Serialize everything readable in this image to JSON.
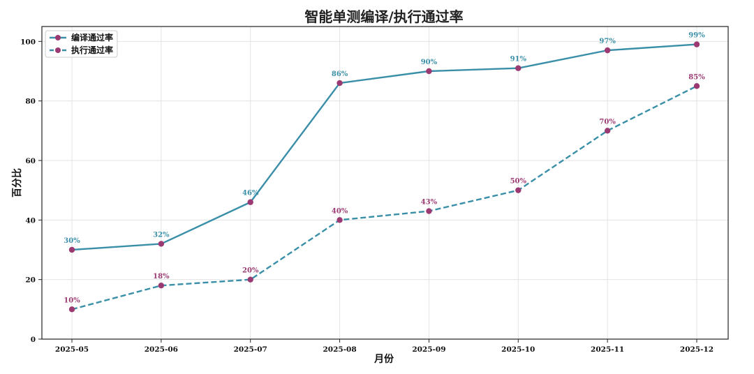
{
  "chart_data": {
    "type": "line",
    "title": "智能单测编译/执行通过率",
    "xlabel": "月份",
    "ylabel": "百分比",
    "categories": [
      "2025-05",
      "2025-06",
      "2025-07",
      "2025-08",
      "2025-09",
      "2025-10",
      "2025-11",
      "2025-12"
    ],
    "ylim": [
      0,
      105
    ],
    "yticks": [
      0,
      20,
      40,
      60,
      80,
      100
    ],
    "grid": true,
    "legend_position": "top-left",
    "series": [
      {
        "name": "编译通过率",
        "values": [
          30,
          32,
          46,
          86,
          90,
          91,
          97,
          99
        ],
        "labels": [
          "30%",
          "32%",
          "46%",
          "86%",
          "90%",
          "91%",
          "97%",
          "99%"
        ],
        "line_style": "solid",
        "line_color": "#3a8fa8",
        "marker_color": "#9b3a72",
        "label_color": "#3a8fa8"
      },
      {
        "name": "执行通过率",
        "values": [
          10,
          18,
          20,
          40,
          43,
          50,
          70,
          85
        ],
        "labels": [
          "10%",
          "18%",
          "20%",
          "40%",
          "43%",
          "50%",
          "70%",
          "85%"
        ],
        "line_style": "dashed",
        "line_color": "#3a8fa8",
        "marker_color": "#9b3a72",
        "label_color": "#9b3a72"
      }
    ]
  }
}
